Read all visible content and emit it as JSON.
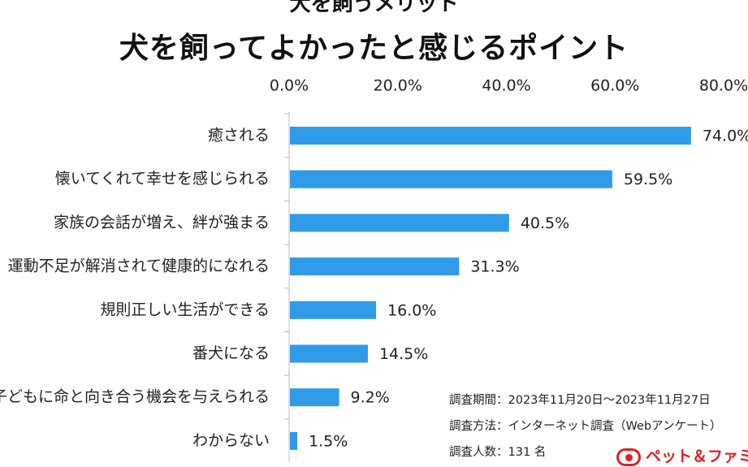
{
  "header": {
    "supertitle": "犬を飼うメリット",
    "title": "犬を飼ってよかったと感じるポイント"
  },
  "chart_data": {
    "type": "bar",
    "orientation": "horizontal",
    "title": "犬を飼ってよかったと感じるポイント",
    "xlabel": "",
    "ylabel": "",
    "xlim": [
      0,
      80
    ],
    "ticks": [
      0,
      20,
      40,
      60,
      80
    ],
    "tick_labels": [
      "0.0%",
      "20.0%",
      "40.0%",
      "60.0%",
      "80.0%"
    ],
    "axis_position": "top",
    "grid": false,
    "bar_color": "#2f9be8",
    "categories": [
      "癒される",
      "懐いてくれて幸せを感じられる",
      "家族の会話が増え、絆が強まる",
      "運動不足が解消されて健康的になれる",
      "規則正しい生活ができる",
      "番犬になる",
      "子どもに命と向き合う機会を与えられる",
      "わからない"
    ],
    "values": [
      74.0,
      59.5,
      40.5,
      31.3,
      16.0,
      14.5,
      9.2,
      1.5
    ],
    "value_labels": [
      "74.0%",
      "59.5%",
      "40.5%",
      "31.3%",
      "16.0%",
      "14.5%",
      "9.2%",
      "1.5%"
    ]
  },
  "survey_notes": {
    "period": "調査期間：2023年11月20日〜2023年11月27日",
    "method": "調査方法：インターネット調査（Webアンケート）",
    "respondents": "調査人数：131 名"
  },
  "logo": {
    "text": "ペット＆ファミリー"
  }
}
